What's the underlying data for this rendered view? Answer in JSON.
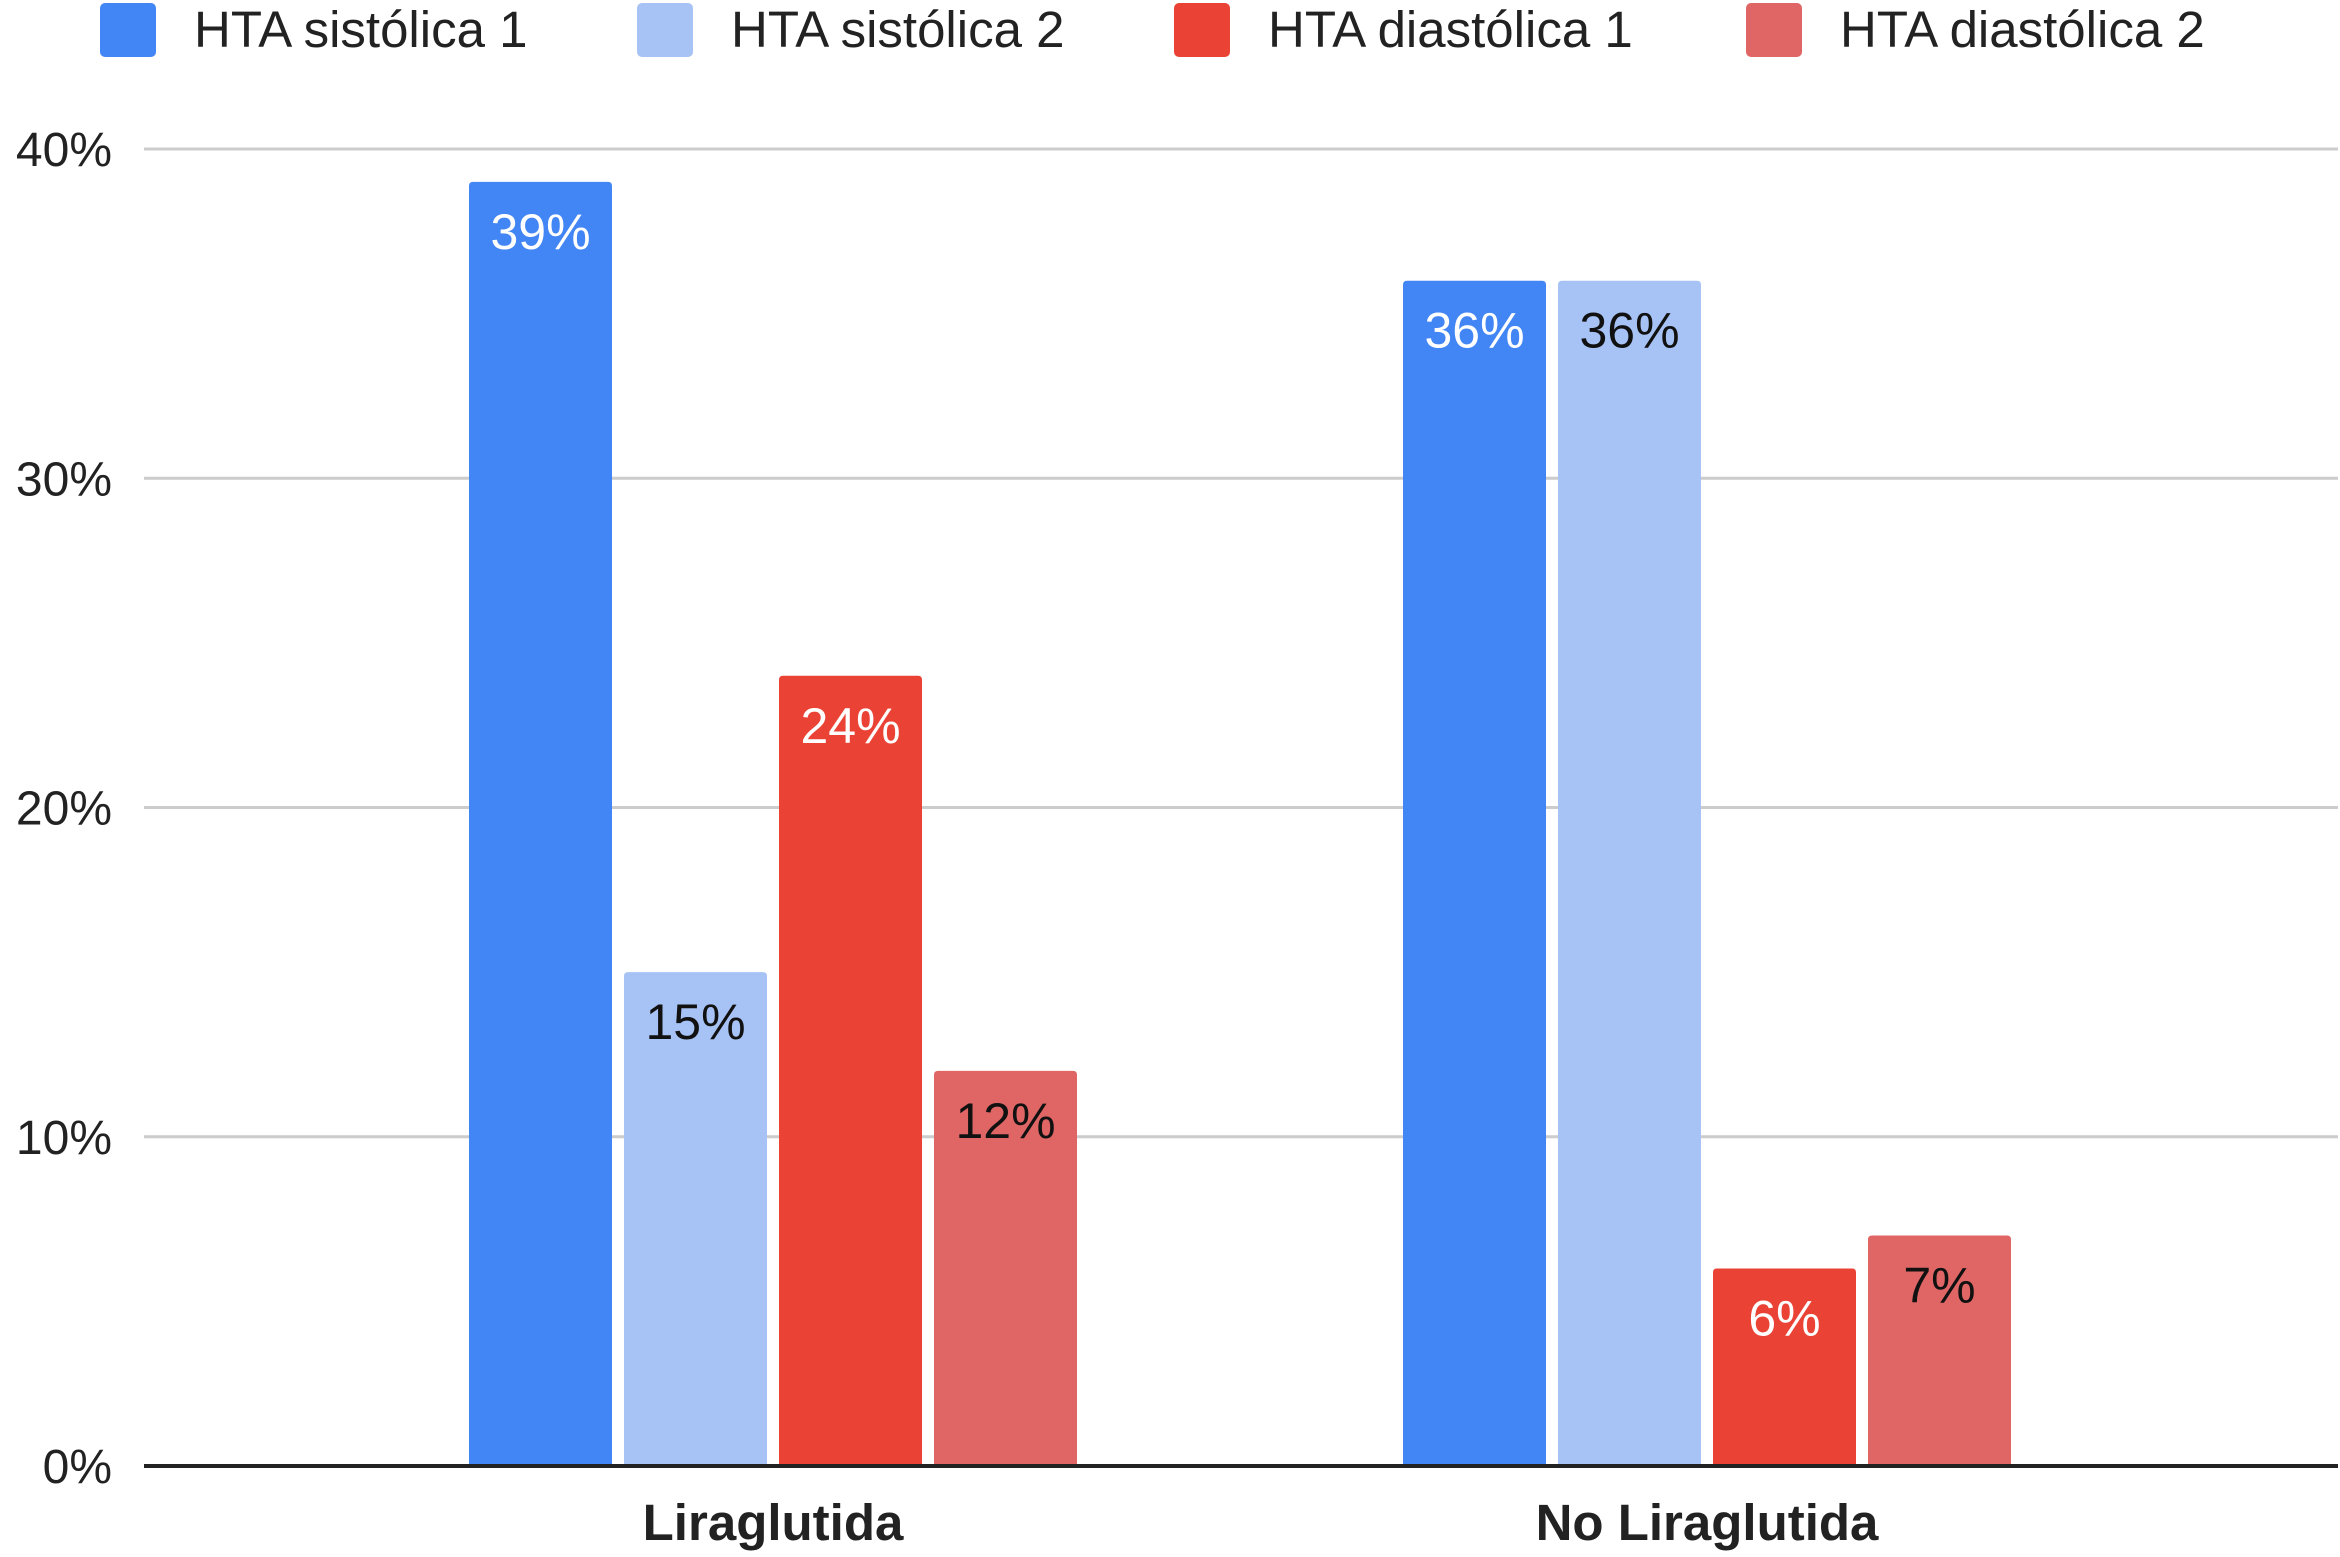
{
  "chart_data": {
    "type": "bar",
    "title": "",
    "xlabel": "",
    "ylabel": "",
    "categories": [
      "Liraglutida",
      "No Liraglutida"
    ],
    "series": [
      {
        "name": "HTA sistólica 1",
        "values": [
          39,
          36
        ],
        "labels": [
          "39%",
          "36%"
        ],
        "color": "#4285f4",
        "label_color": "#ffffff"
      },
      {
        "name": "HTA sistólica 2",
        "values": [
          15,
          36
        ],
        "labels": [
          "15%",
          "36%"
        ],
        "color": "#a7c2f4",
        "label_color": "#111111"
      },
      {
        "name": "HTA diastólica 1",
        "values": [
          24,
          6
        ],
        "labels": [
          "24%",
          "6%"
        ],
        "color": "#ea4335",
        "label_color": "#ffffff"
      },
      {
        "name": "HTA diastólica 2",
        "values": [
          12,
          7
        ],
        "labels": [
          "12%",
          "7%"
        ],
        "color": "#e06666",
        "label_color": "#111111"
      }
    ],
    "ylim": [
      0,
      40
    ],
    "yticks": [
      0,
      10,
      20,
      30,
      40
    ],
    "ytick_labels": [
      "0%",
      "10%",
      "20%",
      "30%",
      "40%"
    ],
    "grid": true,
    "legend_position": "top",
    "axis_color": "#222222",
    "grid_color": "#cccccc"
  }
}
